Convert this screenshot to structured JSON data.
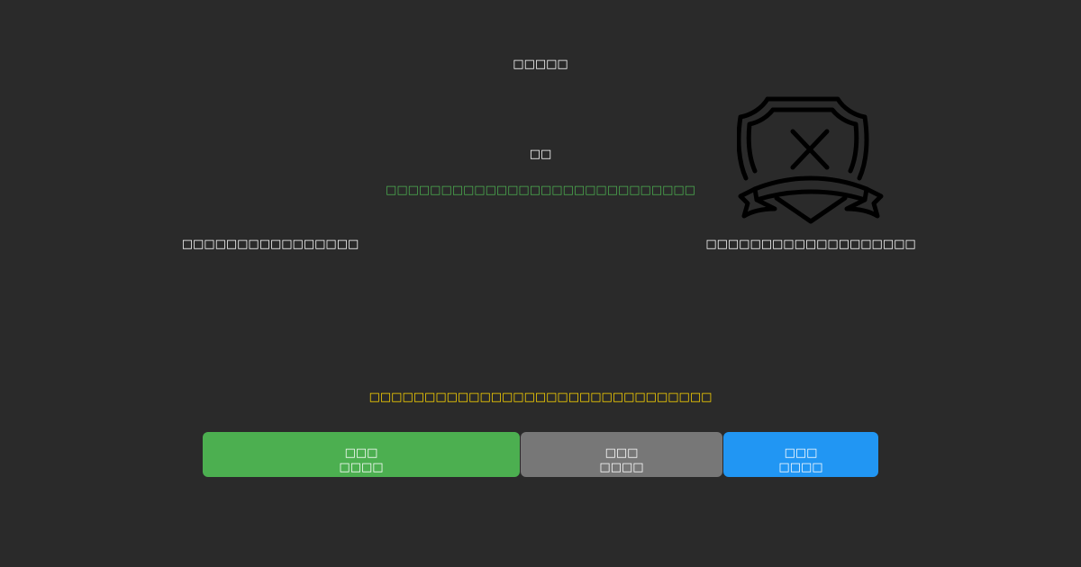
{
  "colors": {
    "background": "#2a2a2a",
    "success": "#4caf50",
    "warning": "#ffd700",
    "neutral": "#777777",
    "primary": "#2196f3"
  },
  "header": {
    "title": "□□□□□"
  },
  "main": {
    "heading": "□□",
    "status_message": "□□□□□□□□□□□□□□□□□□□□□□□□□□□□",
    "left_label": "□□□□□□□□□□□□□□□□",
    "right_label": "□□□□□□□□□□□□□□□□□□□",
    "icon": "shield-x-ribbon-icon",
    "notice": "□□□□□□□□□□□□□□□□□□□□□□□□□□□□□□□"
  },
  "buttons": [
    {
      "line1": "□□□",
      "line2": "□□□□",
      "color": "#4caf50"
    },
    {
      "line1": "□□□",
      "line2": "□□□□",
      "color": "#777777"
    },
    {
      "line1": "□□□",
      "line2": "□□□□",
      "color": "#2196f3"
    }
  ]
}
